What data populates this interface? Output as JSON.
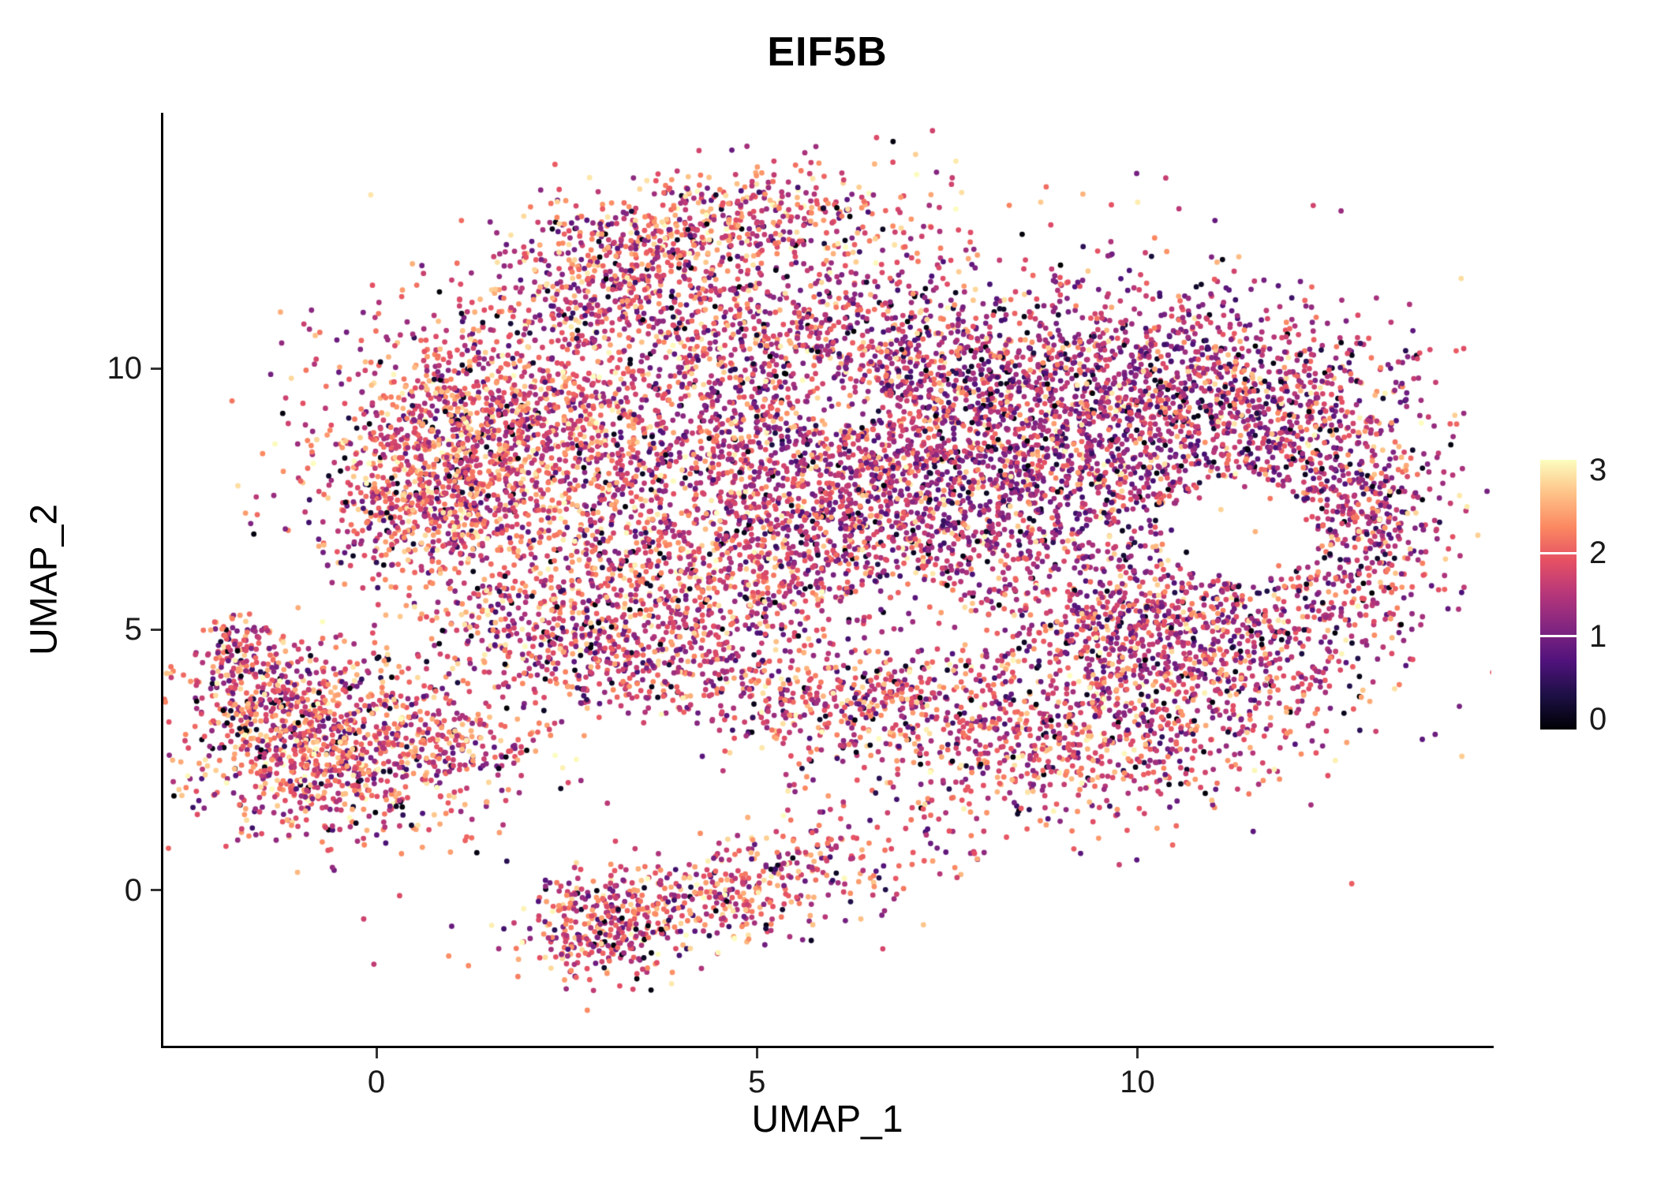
{
  "title": "EIF5B",
  "chart_data": {
    "type": "scatter",
    "title": "EIF5B",
    "xlabel": "UMAP_1",
    "ylabel": "UMAP_2",
    "xlim": [
      -2.8,
      14.65
    ],
    "ylim": [
      -2.98,
      14.9
    ],
    "xticks": [
      0,
      5,
      10
    ],
    "yticks": [
      0,
      5,
      10
    ],
    "grid": false,
    "background": "#ffffff",
    "point_radius_px": 3.4,
    "seed": 42,
    "colormap": "magma",
    "colormap_stops": [
      "#000004",
      "#1c1044",
      "#4f127b",
      "#812581",
      "#b5367a",
      "#e55064",
      "#fb8861",
      "#fec287",
      "#fcfdbf"
    ],
    "legend": {
      "type": "colorbar",
      "position": "right",
      "vmin": 0,
      "vmax": 3,
      "label_values": [
        3,
        2,
        1,
        0
      ],
      "tick_values": [
        1,
        2
      ],
      "tick_color": "#ffffff"
    },
    "value_mix": {
      "p_low": 0.045,
      "p_high": 0.07,
      "low_max": 0.25,
      "high_min": 2.3
    },
    "clusters": [
      {
        "cx": 1.6,
        "cy": 8.8,
        "sx": 1.15,
        "sy": 1.15,
        "n": 1300,
        "vmean": 1.85,
        "vsd": 0.55
      },
      {
        "cx": 0.7,
        "cy": 7.4,
        "sx": 0.75,
        "sy": 0.9,
        "n": 550,
        "vmean": 1.9,
        "vsd": 0.55
      },
      {
        "cx": 3.2,
        "cy": 11.6,
        "sx": 0.85,
        "sy": 0.75,
        "n": 380,
        "vmean": 1.7,
        "vsd": 0.55
      },
      {
        "cx": 4.7,
        "cy": 12.8,
        "sx": 1.25,
        "sy": 0.5,
        "n": 480,
        "vmean": 1.9,
        "vsd": 0.6,
        "rot": 8
      },
      {
        "cx": 5.6,
        "cy": 10.4,
        "sx": 1.6,
        "sy": 1.05,
        "n": 900,
        "vmean": 1.5,
        "vsd": 0.55
      },
      {
        "cx": 5.2,
        "cy": 7.6,
        "sx": 1.6,
        "sy": 1.25,
        "n": 1100,
        "vmean": 1.6,
        "vsd": 0.55
      },
      {
        "cx": 8.3,
        "cy": 8.3,
        "sx": 1.75,
        "sy": 1.55,
        "n": 2000,
        "vmean": 1.35,
        "vsd": 0.5
      },
      {
        "cx": 10.6,
        "cy": 9.8,
        "sx": 1.35,
        "sy": 0.95,
        "n": 700,
        "vmean": 1.4,
        "vsd": 0.5
      },
      {
        "cx": 12.2,
        "cy": 8.3,
        "sx": 0.95,
        "sy": 1.15,
        "n": 600,
        "vmean": 1.5,
        "vsd": 0.55
      },
      {
        "cx": 13.0,
        "cy": 6.9,
        "sx": 0.45,
        "sy": 0.95,
        "n": 230,
        "vmean": 1.6,
        "vsd": 0.55
      },
      {
        "cx": 11.3,
        "cy": 5.3,
        "sx": 1.25,
        "sy": 0.7,
        "n": 430,
        "vmean": 1.5,
        "vsd": 0.55
      },
      {
        "cx": 4.0,
        "cy": 5.7,
        "sx": 1.7,
        "sy": 0.85,
        "n": 750,
        "vmean": 1.7,
        "vsd": 0.55
      },
      {
        "cx": 2.3,
        "cy": 4.9,
        "sx": 0.8,
        "sy": 0.5,
        "n": 200,
        "vmean": 1.7,
        "vsd": 0.55
      },
      {
        "cx": 7.0,
        "cy": 8.5,
        "sx": 3.0,
        "sy": 2.1,
        "n": 800,
        "vmean": 1.45,
        "vsd": 0.55
      },
      {
        "cx": 3.6,
        "cy": 4.1,
        "sx": 1.25,
        "sy": 0.4,
        "n": 260,
        "vmean": 1.6,
        "vsd": 0.55,
        "rot": -6
      },
      {
        "cx": 6.3,
        "cy": 3.6,
        "sx": 0.95,
        "sy": 0.45,
        "n": 260,
        "vmean": 1.7,
        "vsd": 0.55,
        "rot": 6
      },
      {
        "cx": 8.6,
        "cy": 2.9,
        "sx": 1.6,
        "sy": 0.8,
        "n": 780,
        "vmean": 1.7,
        "vsd": 0.55
      },
      {
        "cx": 10.7,
        "cy": 4.1,
        "sx": 1.15,
        "sy": 0.85,
        "n": 460,
        "vmean": 1.55,
        "vsd": 0.55
      },
      {
        "cx": 9.9,
        "cy": 5.0,
        "sx": 0.85,
        "sy": 0.5,
        "n": 200,
        "vmean": 1.5,
        "vsd": 0.55
      },
      {
        "cx": -0.6,
        "cy": 2.7,
        "sx": 1.0,
        "sy": 0.85,
        "n": 1000,
        "vmean": 1.8,
        "vsd": 0.6
      },
      {
        "cx": -1.4,
        "cy": 3.9,
        "sx": 0.5,
        "sy": 0.55,
        "n": 180,
        "vmean": 1.8,
        "vsd": 0.6
      },
      {
        "cx": -1.85,
        "cy": 4.5,
        "sx": 0.28,
        "sy": 0.4,
        "n": 90,
        "vmean": 1.8,
        "vsd": 0.6
      },
      {
        "cx": 1.1,
        "cy": 2.9,
        "sx": 0.75,
        "sy": 0.5,
        "n": 130,
        "vmean": 1.7,
        "vsd": 0.6
      },
      {
        "cx": 4.6,
        "cy": -0.05,
        "sx": 1.5,
        "sy": 0.5,
        "n": 520,
        "vmean": 1.7,
        "vsd": 0.6,
        "rot": 18
      },
      {
        "cx": 3.1,
        "cy": -0.75,
        "sx": 0.5,
        "sy": 0.55,
        "n": 230,
        "vmean": 1.75,
        "vsd": 0.6
      }
    ],
    "holes": [
      {
        "cx": 11.35,
        "cy": 6.9,
        "rx": 0.95,
        "ry": 1.0,
        "keep": 0.04
      },
      {
        "cx": 6.95,
        "cy": 5.25,
        "rx": 1.05,
        "ry": 0.6,
        "keep": 0.3
      },
      {
        "cx": 6.0,
        "cy": 9.3,
        "rx": 0.75,
        "ry": 0.5,
        "keep": 0.35
      }
    ]
  }
}
